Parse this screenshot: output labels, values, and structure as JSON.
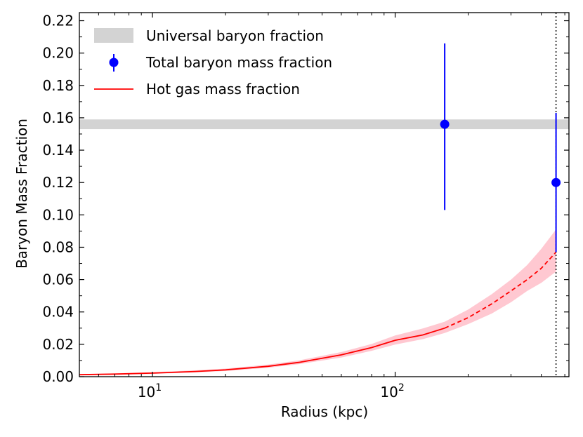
{
  "chart_data": {
    "type": "line",
    "xlabel": "Radius (kpc)",
    "ylabel": "Baryon Mass Fraction",
    "x_scale": "log",
    "xlim": [
      5,
      520
    ],
    "ylim": [
      0,
      0.225
    ],
    "x_ticks": [
      {
        "value": 10,
        "base": "10",
        "exp": "1"
      },
      {
        "value": 100,
        "base": "10",
        "exp": "2"
      }
    ],
    "y_ticks": [
      "0.00",
      "0.02",
      "0.04",
      "0.06",
      "0.08",
      "0.10",
      "0.12",
      "0.14",
      "0.16",
      "0.18",
      "0.20",
      "0.22"
    ],
    "grid": false,
    "legend_position": "upper-left",
    "legend": [
      {
        "label": "Universal baryon fraction",
        "kind": "band"
      },
      {
        "label": "Total baryon mass fraction",
        "kind": "errorbar"
      },
      {
        "label": "Hot gas mass fraction",
        "kind": "line"
      }
    ],
    "universal_baryon_fraction_band": {
      "y_low": 0.153,
      "y_high": 0.159,
      "color": "#d3d3d3"
    },
    "total_baryon_points": {
      "color": "#0000ff",
      "x": [
        160,
        460
      ],
      "y": [
        0.156,
        0.12
      ],
      "y_err_low": [
        0.103,
        0.077
      ],
      "y_err_high": [
        0.206,
        0.163
      ]
    },
    "hot_gas": {
      "color": "#ff0000",
      "band_color": "#ffb6c1",
      "solid_until_x": 160,
      "x": [
        5,
        7,
        10,
        15,
        20,
        30,
        40,
        60,
        80,
        100,
        130,
        160,
        200,
        250,
        300,
        350,
        400,
        460
      ],
      "y": [
        0.0012,
        0.0016,
        0.0022,
        0.0032,
        0.0042,
        0.0064,
        0.0088,
        0.0135,
        0.018,
        0.0225,
        0.0258,
        0.03,
        0.0365,
        0.045,
        0.053,
        0.06,
        0.067,
        0.077
      ],
      "y_low": [
        0.0009,
        0.0012,
        0.0017,
        0.0026,
        0.0035,
        0.0055,
        0.0077,
        0.0118,
        0.016,
        0.0198,
        0.0232,
        0.027,
        0.0325,
        0.039,
        0.046,
        0.053,
        0.058,
        0.065
      ],
      "y_high": [
        0.0015,
        0.002,
        0.0028,
        0.0039,
        0.005,
        0.0075,
        0.01,
        0.0152,
        0.0202,
        0.0255,
        0.0298,
        0.034,
        0.0415,
        0.051,
        0.06,
        0.069,
        0.079,
        0.091
      ]
    },
    "vertical_line": {
      "x": 460,
      "style": "dotted",
      "color": "#000000"
    }
  }
}
